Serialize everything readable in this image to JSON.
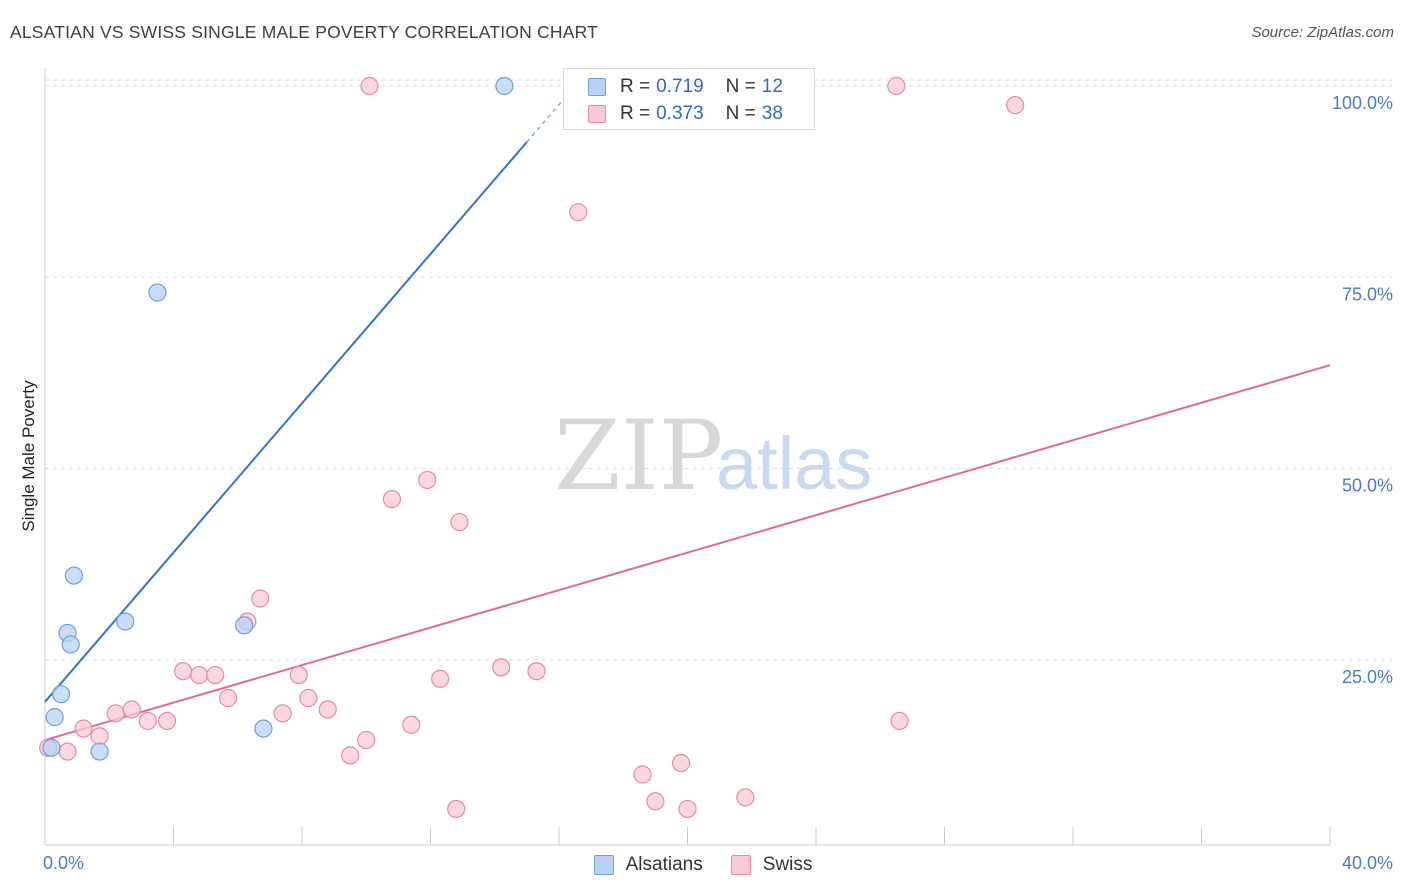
{
  "header": {
    "title": "ALSATIAN VS SWISS SINGLE MALE POVERTY CORRELATION CHART",
    "source": "Source: ZipAtlas.com"
  },
  "legend": {
    "rows": [
      {
        "r_label": "R =",
        "r_value": "0.719",
        "n_label": "N =",
        "n_value": "12"
      },
      {
        "r_label": "R =",
        "r_value": "0.373",
        "n_label": "N =",
        "n_value": "38"
      }
    ]
  },
  "bottom_legend": {
    "items": [
      "Alsatians",
      "Swiss"
    ]
  },
  "watermark": {
    "zip": "ZIP",
    "atlas": "atlas"
  },
  "colors": {
    "blue_fill": "#b7d2f4",
    "blue_stroke": "#6f9fdc",
    "blue_line": "#2f74d0",
    "pink_fill": "#f9c9d6",
    "pink_stroke": "#e88aa6",
    "pink_line": "#e06a94",
    "grid": "#dddddd",
    "tick_label": "#4a7bd0"
  },
  "chart_data": {
    "type": "scatter",
    "title": "ALSATIAN VS SWISS SINGLE MALE POVERTY CORRELATION CHART",
    "xlabel": "",
    "ylabel": "Single Male Poverty",
    "xlim": [
      0,
      40
    ],
    "ylim": [
      0,
      100
    ],
    "x_tick_labels": [
      "0.0%",
      "40.0%"
    ],
    "y_tick_labels": [
      "25.0%",
      "50.0%",
      "75.0%",
      "100.0%"
    ],
    "y_ticks": [
      25,
      50,
      75,
      100
    ],
    "grid": true,
    "legend_position": "top-center",
    "series": [
      {
        "name": "Alsatians",
        "color": "#6f9fdc",
        "points": [
          [
            0.2,
            13.5
          ],
          [
            0.3,
            17.5
          ],
          [
            0.5,
            20.5
          ],
          [
            0.7,
            28.5
          ],
          [
            0.9,
            36.0
          ],
          [
            0.8,
            27.0
          ],
          [
            1.7,
            13.0
          ],
          [
            2.5,
            30.0
          ],
          [
            3.5,
            73.0
          ],
          [
            6.2,
            29.5
          ],
          [
            6.8,
            16.0
          ],
          [
            14.3,
            100.0
          ]
        ],
        "trend": {
          "x": [
            0.0,
            16.5
          ],
          "y": [
            19.5,
            100.0
          ]
        }
      },
      {
        "name": "Swiss",
        "color": "#e88aa6",
        "points": [
          [
            0.1,
            13.5
          ],
          [
            0.7,
            13.0
          ],
          [
            1.2,
            16.0
          ],
          [
            1.7,
            15.0
          ],
          [
            2.2,
            18.0
          ],
          [
            2.7,
            18.5
          ],
          [
            3.2,
            17.0
          ],
          [
            3.8,
            17.0
          ],
          [
            4.3,
            23.5
          ],
          [
            4.8,
            23.0
          ],
          [
            5.3,
            23.0
          ],
          [
            5.7,
            20.0
          ],
          [
            6.3,
            30.0
          ],
          [
            6.7,
            33.0
          ],
          [
            7.4,
            18.0
          ],
          [
            7.9,
            23.0
          ],
          [
            8.2,
            20.0
          ],
          [
            8.8,
            18.5
          ],
          [
            9.5,
            12.5
          ],
          [
            10.0,
            14.5
          ],
          [
            10.1,
            100.0
          ],
          [
            10.8,
            46.0
          ],
          [
            11.4,
            16.5
          ],
          [
            11.9,
            48.5
          ],
          [
            12.3,
            22.5
          ],
          [
            12.8,
            5.5
          ],
          [
            12.9,
            43.0
          ],
          [
            14.2,
            24.0
          ],
          [
            15.3,
            23.5
          ],
          [
            16.6,
            83.5
          ],
          [
            18.6,
            10.0
          ],
          [
            19.0,
            6.5
          ],
          [
            19.8,
            11.5
          ],
          [
            20.0,
            5.5
          ],
          [
            21.8,
            7.0
          ],
          [
            26.5,
            100.0
          ],
          [
            26.6,
            17.0
          ],
          [
            30.2,
            97.5
          ]
        ],
        "trend": {
          "x": [
            0.0,
            40.0
          ],
          "y": [
            14.5,
            63.5
          ]
        }
      }
    ]
  }
}
